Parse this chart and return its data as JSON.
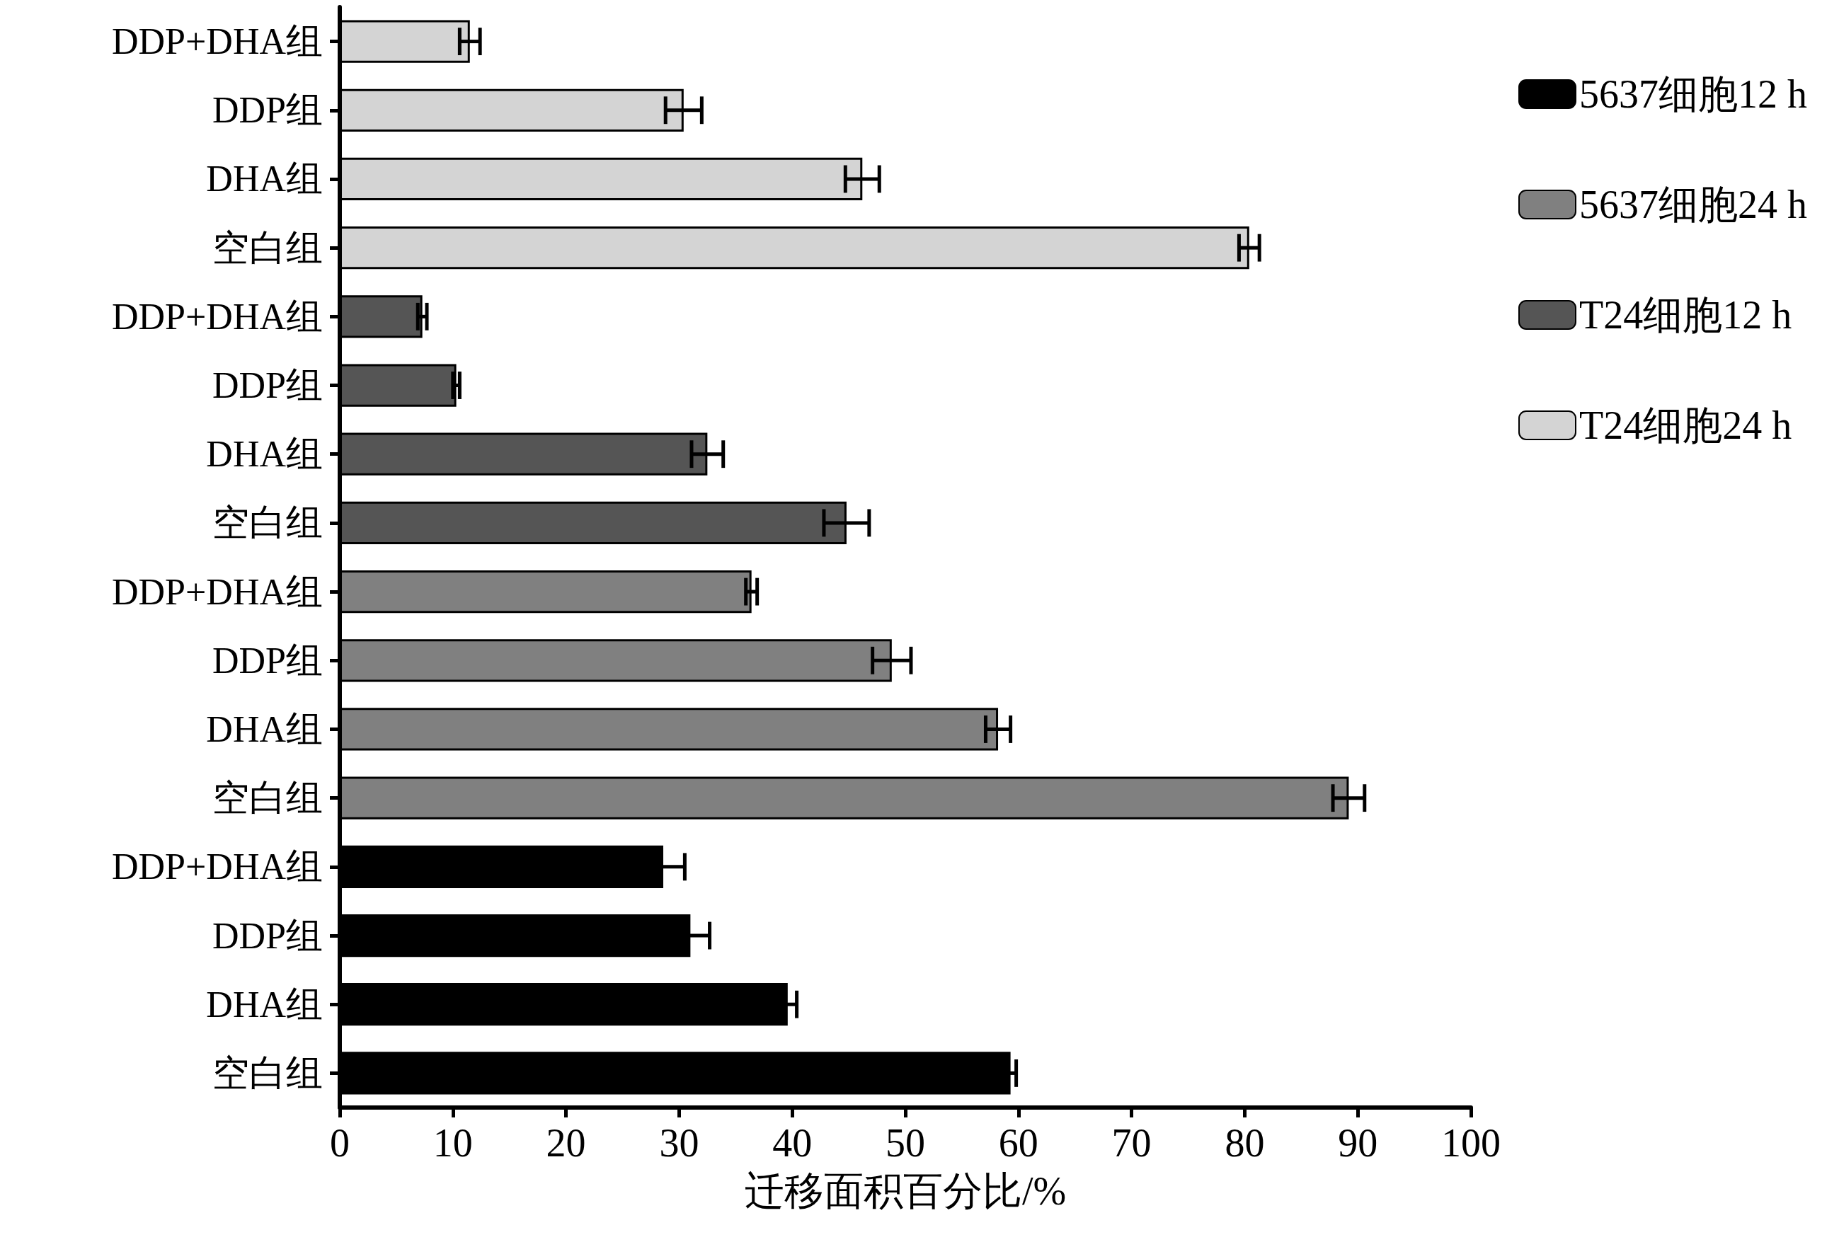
{
  "chart_data": {
    "type": "bar",
    "orientation": "horizontal",
    "xlabel": "迁移面积百分比/%",
    "categories": [
      "DDP+DHA组",
      "DDP组",
      "DHA组",
      "空白组",
      "DDP+DHA组",
      "DDP组",
      "DHA组",
      "空白组",
      "DDP+DHA组",
      "DDP组",
      "DHA组",
      "空白组",
      "DDP+DHA组",
      "DDP组",
      "DHA组",
      "空白组"
    ],
    "series": [
      {
        "name": "5637细胞12 h",
        "color": "#000000",
        "values": [
          null,
          null,
          null,
          null,
          null,
          null,
          null,
          null,
          null,
          null,
          null,
          null,
          28.6,
          31.0,
          39.6,
          59.3
        ],
        "errors": [
          null,
          null,
          null,
          null,
          null,
          null,
          null,
          null,
          null,
          null,
          null,
          null,
          1.9,
          1.7,
          0.8,
          0.5
        ]
      },
      {
        "name": "5637细胞24 h",
        "color": "#808080",
        "values": [
          null,
          null,
          null,
          null,
          null,
          null,
          null,
          null,
          36.4,
          48.8,
          58.2,
          89.2,
          null,
          null,
          null,
          null
        ],
        "errors": [
          null,
          null,
          null,
          null,
          null,
          null,
          null,
          null,
          0.5,
          1.7,
          1.1,
          1.4,
          null,
          null,
          null,
          null
        ]
      },
      {
        "name": "T24细胞12 h",
        "color": "#555555",
        "values": [
          null,
          null,
          null,
          null,
          7.3,
          10.3,
          32.5,
          44.8,
          null,
          null,
          null,
          null,
          null,
          null,
          null,
          null
        ],
        "errors": [
          null,
          null,
          null,
          null,
          0.4,
          0.3,
          1.4,
          2.0,
          null,
          null,
          null,
          null,
          null,
          null,
          null,
          null
        ]
      },
      {
        "name": "T24细胞24 h",
        "color": "#d4d4d4",
        "values": [
          11.5,
          30.4,
          46.2,
          80.4,
          null,
          null,
          null,
          null,
          null,
          null,
          null,
          null,
          null,
          null,
          null,
          null
        ],
        "errors": [
          0.9,
          1.6,
          1.5,
          0.9,
          null,
          null,
          null,
          null,
          null,
          null,
          null,
          null,
          null,
          null,
          null,
          null
        ]
      }
    ],
    "xlim": [
      0,
      100
    ],
    "xticks": [
      0,
      10,
      20,
      30,
      40,
      50,
      60,
      70,
      80,
      90,
      100
    ],
    "grid": false,
    "legend": "top right"
  }
}
